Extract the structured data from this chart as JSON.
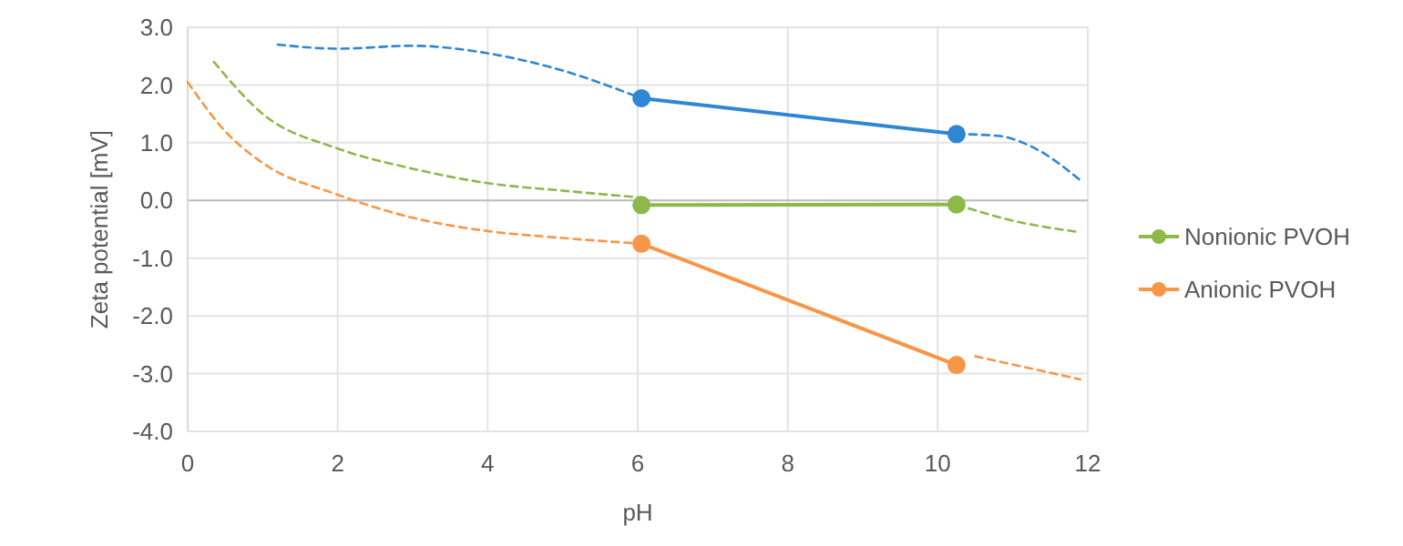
{
  "chart_data": {
    "type": "line",
    "xlabel": "pH",
    "ylabel": "Zeta potential [mV]",
    "xlim": [
      0,
      12
    ],
    "xticks": [
      0,
      2,
      4,
      6,
      8,
      10,
      12
    ],
    "ylim": [
      -4,
      3
    ],
    "yticks": [
      {
        "value": 3,
        "label": "3.0"
      },
      {
        "value": 2,
        "label": "2.0"
      },
      {
        "value": 1,
        "label": "1.0"
      },
      {
        "value": 0,
        "label": "0.0"
      },
      {
        "value": -1,
        "label": "-1.0"
      },
      {
        "value": -2,
        "label": "-2.0"
      },
      {
        "value": -3,
        "label": "-3.0"
      },
      {
        "value": -4,
        "label": "-4.0"
      }
    ],
    "grid": true,
    "legend": "right",
    "series": [
      {
        "color": "#2e86d4",
        "x": [
          6.05,
          10.25
        ],
        "values": [
          1.77,
          1.15
        ],
        "marker": "circle",
        "line_style": "solid"
      },
      {
        "name": "Nonionic PVOH",
        "color": "#8db84a",
        "x": [
          6.05,
          10.25
        ],
        "values": [
          -0.08,
          -0.07
        ],
        "marker": "circle",
        "line_style": "solid"
      },
      {
        "name": "Anionic PVOH",
        "color": "#f79646",
        "x": [
          6.05,
          10.25
        ],
        "values": [
          -0.75,
          -2.85
        ],
        "marker": "circle",
        "line_style": "solid"
      },
      {
        "color": "#2e86d4",
        "x": [
          1.2,
          2,
          3,
          4,
          5,
          6.05
        ],
        "values": [
          2.7,
          2.63,
          2.68,
          2.55,
          2.25,
          1.77
        ],
        "marker": "none",
        "line_style": "dashed"
      },
      {
        "color": "#2e86d4",
        "x": [
          10.25,
          10.8,
          11.3,
          11.9
        ],
        "values": [
          1.15,
          1.12,
          0.9,
          0.35
        ],
        "marker": "none",
        "line_style": "dashed"
      },
      {
        "color": "#8db84a",
        "x": [
          0.35,
          1,
          2,
          3,
          4,
          5,
          6.05
        ],
        "values": [
          2.4,
          1.5,
          0.9,
          0.55,
          0.3,
          0.17,
          0.05
        ],
        "marker": "none",
        "line_style": "dashed"
      },
      {
        "color": "#8db84a",
        "x": [
          10.25,
          11,
          11.9
        ],
        "values": [
          -0.07,
          -0.35,
          -0.55
        ],
        "marker": "none",
        "line_style": "dashed"
      },
      {
        "color": "#f79646",
        "x": [
          0,
          0.5,
          1,
          2,
          3,
          4,
          5,
          6.05
        ],
        "values": [
          2.05,
          1.2,
          0.65,
          0.1,
          -0.3,
          -0.53,
          -0.65,
          -0.75
        ],
        "marker": "none",
        "line_style": "dashed"
      },
      {
        "color": "#f79646",
        "x": [
          10.5,
          11.2,
          11.9
        ],
        "values": [
          -2.7,
          -2.9,
          -3.1
        ],
        "marker": "none",
        "line_style": "dashed"
      }
    ]
  }
}
